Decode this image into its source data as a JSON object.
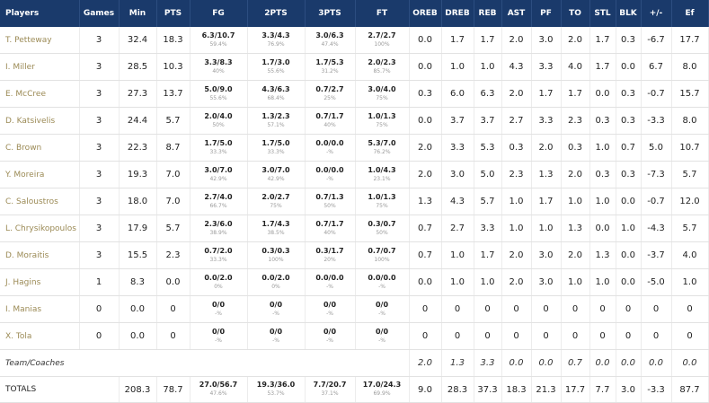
{
  "headers": [
    "Players",
    "Games",
    "Min",
    "PTS",
    "FG",
    "2PTS",
    "3PTS",
    "FT",
    "OREB",
    "DREB",
    "REB",
    "AST",
    "PF",
    "TO",
    "STL",
    "BLK",
    "+/-",
    "Ef"
  ],
  "players": [
    {
      "name": "T. Petteway",
      "games": "3",
      "min": "32.4",
      "pts": "18.3",
      "fg": [
        "6.3/10.7",
        "59.4%"
      ],
      "p2": [
        "3.3/4.3",
        "76.9%"
      ],
      "p3": [
        "3.0/6.3",
        "47.4%"
      ],
      "ft": [
        "2.7/2.7",
        "100%"
      ],
      "oreb": "0.0",
      "dreb": "1.7",
      "reb": "1.7",
      "ast": "2.0",
      "pf": "3.0",
      "to": "2.0",
      "stl": "1.7",
      "blk": "0.3",
      "pm": "-6.7",
      "ef": "17.7"
    },
    {
      "name": "I. Miller",
      "games": "3",
      "min": "28.5",
      "pts": "10.3",
      "fg": [
        "3.3/8.3",
        "40%"
      ],
      "p2": [
        "1.7/3.0",
        "55.6%"
      ],
      "p3": [
        "1.7/5.3",
        "31.2%"
      ],
      "ft": [
        "2.0/2.3",
        "85.7%"
      ],
      "oreb": "0.0",
      "dreb": "1.0",
      "reb": "1.0",
      "ast": "4.3",
      "pf": "3.3",
      "to": "4.0",
      "stl": "1.7",
      "blk": "0.0",
      "pm": "6.7",
      "ef": "8.0"
    },
    {
      "name": "E. McCree",
      "games": "3",
      "min": "27.3",
      "pts": "13.7",
      "fg": [
        "5.0/9.0",
        "55.6%"
      ],
      "p2": [
        "4.3/6.3",
        "68.4%"
      ],
      "p3": [
        "0.7/2.7",
        "25%"
      ],
      "ft": [
        "3.0/4.0",
        "75%"
      ],
      "oreb": "0.3",
      "dreb": "6.0",
      "reb": "6.3",
      "ast": "2.0",
      "pf": "1.7",
      "to": "1.7",
      "stl": "0.0",
      "blk": "0.3",
      "pm": "-0.7",
      "ef": "15.7"
    },
    {
      "name": "D. Katsivelis",
      "games": "3",
      "min": "24.4",
      "pts": "5.7",
      "fg": [
        "2.0/4.0",
        "50%"
      ],
      "p2": [
        "1.3/2.3",
        "57.1%"
      ],
      "p3": [
        "0.7/1.7",
        "40%"
      ],
      "ft": [
        "1.0/1.3",
        "75%"
      ],
      "oreb": "0.0",
      "dreb": "3.7",
      "reb": "3.7",
      "ast": "2.7",
      "pf": "3.3",
      "to": "2.3",
      "stl": "0.3",
      "blk": "0.3",
      "pm": "-3.3",
      "ef": "8.0"
    },
    {
      "name": "C. Brown",
      "games": "3",
      "min": "22.3",
      "pts": "8.7",
      "fg": [
        "1.7/5.0",
        "33.3%"
      ],
      "p2": [
        "1.7/5.0",
        "33.3%"
      ],
      "p3": [
        "0.0/0.0",
        "-%"
      ],
      "ft": [
        "5.3/7.0",
        "76.2%"
      ],
      "oreb": "2.0",
      "dreb": "3.3",
      "reb": "5.3",
      "ast": "0.3",
      "pf": "2.0",
      "to": "0.3",
      "stl": "1.0",
      "blk": "0.7",
      "pm": "5.0",
      "ef": "10.7"
    },
    {
      "name": "Y. Moreira",
      "games": "3",
      "min": "19.3",
      "pts": "7.0",
      "fg": [
        "3.0/7.0",
        "42.9%"
      ],
      "p2": [
        "3.0/7.0",
        "42.9%"
      ],
      "p3": [
        "0.0/0.0",
        "-%"
      ],
      "ft": [
        "1.0/4.3",
        "23.1%"
      ],
      "oreb": "2.0",
      "dreb": "3.0",
      "reb": "5.0",
      "ast": "2.3",
      "pf": "1.3",
      "to": "2.0",
      "stl": "0.3",
      "blk": "0.3",
      "pm": "-7.3",
      "ef": "5.7"
    },
    {
      "name": "C. Saloustros",
      "games": "3",
      "min": "18.0",
      "pts": "7.0",
      "fg": [
        "2.7/4.0",
        "66.7%"
      ],
      "p2": [
        "2.0/2.7",
        "75%"
      ],
      "p3": [
        "0.7/1.3",
        "50%"
      ],
      "ft": [
        "1.0/1.3",
        "75%"
      ],
      "oreb": "1.3",
      "dreb": "4.3",
      "reb": "5.7",
      "ast": "1.0",
      "pf": "1.7",
      "to": "1.0",
      "stl": "1.0",
      "blk": "0.0",
      "pm": "-0.7",
      "ef": "12.0"
    },
    {
      "name": "L. Chrysikopoulos",
      "games": "3",
      "min": "17.9",
      "pts": "5.7",
      "fg": [
        "2.3/6.0",
        "38.9%"
      ],
      "p2": [
        "1.7/4.3",
        "38.5%"
      ],
      "p3": [
        "0.7/1.7",
        "40%"
      ],
      "ft": [
        "0.3/0.7",
        "50%"
      ],
      "oreb": "0.7",
      "dreb": "2.7",
      "reb": "3.3",
      "ast": "1.0",
      "pf": "1.0",
      "to": "1.3",
      "stl": "0.0",
      "blk": "1.0",
      "pm": "-4.3",
      "ef": "5.7"
    },
    {
      "name": "D. Moraitis",
      "games": "3",
      "min": "15.5",
      "pts": "2.3",
      "fg": [
        "0.7/2.0",
        "33.3%"
      ],
      "p2": [
        "0.3/0.3",
        "100%"
      ],
      "p3": [
        "0.3/1.7",
        "20%"
      ],
      "ft": [
        "0.7/0.7",
        "100%"
      ],
      "oreb": "0.7",
      "dreb": "1.0",
      "reb": "1.7",
      "ast": "2.0",
      "pf": "3.0",
      "to": "2.0",
      "stl": "1.3",
      "blk": "0.0",
      "pm": "-3.7",
      "ef": "4.0"
    },
    {
      "name": "J. Hagins",
      "games": "1",
      "min": "8.3",
      "pts": "0.0",
      "fg": [
        "0.0/2.0",
        "0%"
      ],
      "p2": [
        "0.0/2.0",
        "0%"
      ],
      "p3": [
        "0.0/0.0",
        "-%"
      ],
      "ft": [
        "0.0/0.0",
        "-%"
      ],
      "oreb": "0.0",
      "dreb": "1.0",
      "reb": "1.0",
      "ast": "2.0",
      "pf": "3.0",
      "to": "1.0",
      "stl": "1.0",
      "blk": "0.0",
      "pm": "-5.0",
      "ef": "1.0"
    },
    {
      "name": "I. Manias",
      "games": "0",
      "min": "0.0",
      "pts": "0",
      "fg": [
        "0/0",
        "-%"
      ],
      "p2": [
        "0/0",
        "-%"
      ],
      "p3": [
        "0/0",
        "-%"
      ],
      "ft": [
        "0/0",
        "-%"
      ],
      "oreb": "0",
      "dreb": "0",
      "reb": "0",
      "ast": "0",
      "pf": "0",
      "to": "0",
      "stl": "0",
      "blk": "0",
      "pm": "0",
      "ef": "0"
    },
    {
      "name": "X. Tola",
      "games": "0",
      "min": "0.0",
      "pts": "0",
      "fg": [
        "0/0",
        "-%"
      ],
      "p2": [
        "0/0",
        "-%"
      ],
      "p3": [
        "0/0",
        "-%"
      ],
      "ft": [
        "0/0",
        "-%"
      ],
      "oreb": "0",
      "dreb": "0",
      "reb": "0",
      "ast": "0",
      "pf": "0",
      "to": "0",
      "stl": "0",
      "blk": "0",
      "pm": "0",
      "ef": "0"
    }
  ],
  "team": {
    "name": "Team/Coaches",
    "oreb": "2.0",
    "dreb": "1.3",
    "reb": "3.3",
    "ast": "0.0",
    "pf": "0.0",
    "to": "0.7",
    "stl": "0.0",
    "blk": "0.0",
    "pm": "0.0",
    "ef": "0.0"
  },
  "totals": {
    "name": "TOTALS",
    "min": "208.3",
    "pts": "78.7",
    "fg": [
      "27.0/56.7",
      "47.6%"
    ],
    "p2": [
      "19.3/36.0",
      "53.7%"
    ],
    "p3": [
      "7.7/20.7",
      "37.1%"
    ],
    "ft": [
      "17.0/24.3",
      "69.9%"
    ],
    "oreb": "9.0",
    "dreb": "28.3",
    "reb": "37.3",
    "ast": "18.3",
    "pf": "21.3",
    "to": "17.7",
    "stl": "7.7",
    "blk": "3.0",
    "pm": "-3.3",
    "ef": "87.7"
  }
}
